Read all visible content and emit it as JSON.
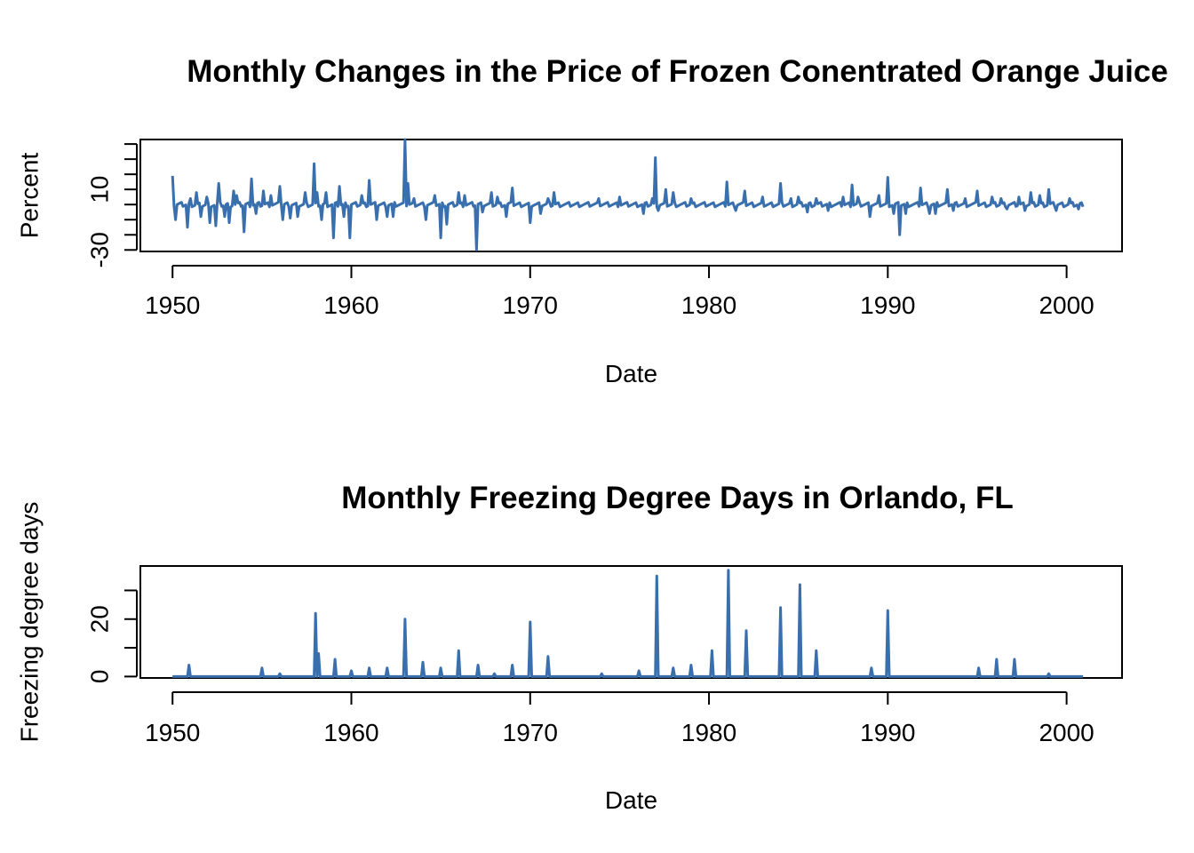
{
  "colors": {
    "series": "#3a6fae",
    "axis": "#000000",
    "background": "#ffffff"
  },
  "chart_data": [
    {
      "type": "line",
      "title": "Monthly Changes in the Price of Frozen Conentrated Orange Juice",
      "xlabel": "Date",
      "ylabel": "Percent",
      "xlim": [
        1948.2,
        2003.1
      ],
      "ylim": [
        -31,
        43
      ],
      "x_ticks": [
        1950,
        1960,
        1970,
        1980,
        1990,
        2000
      ],
      "x_tick_labels": [
        "1950",
        "1960",
        "1970",
        "1980",
        "1990",
        "2000"
      ],
      "y_ticks": [
        -30,
        -20,
        -10,
        0,
        10,
        20,
        30,
        40
      ],
      "y_tick_labels": [
        "-30",
        "",
        "",
        "",
        "10",
        "",
        "",
        ""
      ],
      "grid": false,
      "series": [
        {
          "x_start": 1950.0,
          "x_end": 2000.9,
          "values_note_free": true,
          "baseline": 0,
          "spikes": [
            [
              1950.0,
              19
            ],
            [
              1950.2,
              -10
            ],
            [
              1950.8,
              -15
            ],
            [
              1951.0,
              4
            ],
            [
              1951.3,
              8
            ],
            [
              1951.6,
              -8
            ],
            [
              1951.9,
              5
            ],
            [
              1952.1,
              -12
            ],
            [
              1952.4,
              -14
            ],
            [
              1952.6,
              14
            ],
            [
              1952.9,
              -8
            ],
            [
              1953.2,
              -12
            ],
            [
              1953.4,
              9
            ],
            [
              1953.6,
              6
            ],
            [
              1954.0,
              -18
            ],
            [
              1954.4,
              17
            ],
            [
              1954.7,
              -6
            ],
            [
              1955.1,
              9
            ],
            [
              1955.5,
              6
            ],
            [
              1956.0,
              12
            ],
            [
              1956.2,
              -10
            ],
            [
              1956.6,
              -9
            ],
            [
              1957.0,
              -8
            ],
            [
              1957.4,
              8
            ],
            [
              1957.9,
              27
            ],
            [
              1958.1,
              8
            ],
            [
              1958.3,
              -10
            ],
            [
              1958.6,
              8
            ],
            [
              1959.0,
              -22
            ],
            [
              1959.3,
              12
            ],
            [
              1959.6,
              -8
            ],
            [
              1959.9,
              -22
            ],
            [
              1960.6,
              6
            ],
            [
              1961.0,
              16
            ],
            [
              1961.4,
              -10
            ],
            [
              1962.0,
              -8
            ],
            [
              1962.3,
              -8
            ],
            [
              1963.0,
              43
            ],
            [
              1963.2,
              14
            ],
            [
              1963.5,
              4
            ],
            [
              1964.2,
              -10
            ],
            [
              1964.7,
              6
            ],
            [
              1965.0,
              -22
            ],
            [
              1965.3,
              -13
            ],
            [
              1966.0,
              8
            ],
            [
              1966.3,
              6
            ],
            [
              1967.0,
              -30
            ],
            [
              1967.3,
              -5
            ],
            [
              1967.8,
              8
            ],
            [
              1968.2,
              5
            ],
            [
              1968.7,
              -8
            ],
            [
              1969.0,
              11
            ],
            [
              1970.0,
              -12
            ],
            [
              1970.6,
              -6
            ],
            [
              1971.0,
              4
            ],
            [
              1971.3,
              8
            ],
            [
              1973.8,
              4
            ],
            [
              1975.0,
              5
            ],
            [
              1976.3,
              -6
            ],
            [
              1976.8,
              4
            ],
            [
              1977.0,
              31
            ],
            [
              1977.2,
              -4
            ],
            [
              1977.6,
              10
            ],
            [
              1978.0,
              8
            ],
            [
              1979.0,
              4
            ],
            [
              1981.0,
              15
            ],
            [
              1981.5,
              -4
            ],
            [
              1982.0,
              9
            ],
            [
              1983.0,
              5
            ],
            [
              1984.0,
              14
            ],
            [
              1984.6,
              4
            ],
            [
              1985.0,
              5
            ],
            [
              1985.5,
              -5
            ],
            [
              1986.0,
              4
            ],
            [
              1986.7,
              -4
            ],
            [
              1987.5,
              5
            ],
            [
              1988.0,
              13
            ],
            [
              1988.3,
              5
            ],
            [
              1989.0,
              -8
            ],
            [
              1989.5,
              6
            ],
            [
              1990.0,
              18
            ],
            [
              1990.3,
              -6
            ],
            [
              1990.7,
              -20
            ],
            [
              1991.0,
              -6
            ],
            [
              1991.8,
              11
            ],
            [
              1992.3,
              -6
            ],
            [
              1992.7,
              -6
            ],
            [
              1993.3,
              10
            ],
            [
              1993.7,
              -4
            ],
            [
              1994.3,
              4
            ],
            [
              1995.0,
              9
            ],
            [
              1995.8,
              5
            ],
            [
              1996.3,
              4
            ],
            [
              1996.7,
              -3
            ],
            [
              1997.3,
              5
            ],
            [
              1997.7,
              -4
            ],
            [
              1998.0,
              8
            ],
            [
              1998.5,
              6
            ],
            [
              1999.0,
              10
            ],
            [
              1999.4,
              -4
            ],
            [
              2000.2,
              4
            ],
            [
              2000.7,
              -3
            ]
          ]
        }
      ]
    },
    {
      "type": "line",
      "title": "Monthly Freezing Degree Days in Orlando, FL",
      "xlabel": "Date",
      "ylabel": "Freezing degree days",
      "xlim": [
        1948.2,
        2003.1
      ],
      "ylim": [
        -0.5,
        38.5
      ],
      "x_ticks": [
        1950,
        1960,
        1970,
        1980,
        1990,
        2000
      ],
      "x_tick_labels": [
        "1950",
        "1960",
        "1970",
        "1980",
        "1990",
        "2000"
      ],
      "y_ticks": [
        0,
        10,
        20,
        30
      ],
      "y_tick_labels": [
        "0",
        "",
        "20",
        ""
      ],
      "grid": false,
      "series": [
        {
          "x_start": 1950.0,
          "x_end": 2000.9,
          "baseline": 0,
          "spikes": [
            [
              1950.9,
              4
            ],
            [
              1955.0,
              3
            ],
            [
              1956.0,
              1
            ],
            [
              1958.0,
              22
            ],
            [
              1958.2,
              8
            ],
            [
              1959.1,
              6
            ],
            [
              1960.0,
              2
            ],
            [
              1961.0,
              3
            ],
            [
              1962.0,
              3
            ],
            [
              1963.0,
              20
            ],
            [
              1964.0,
              5
            ],
            [
              1965.0,
              3
            ],
            [
              1966.0,
              9
            ],
            [
              1967.1,
              4
            ],
            [
              1968.0,
              1
            ],
            [
              1969.0,
              4
            ],
            [
              1970.0,
              19
            ],
            [
              1971.0,
              7
            ],
            [
              1974.0,
              1
            ],
            [
              1976.1,
              2
            ],
            [
              1977.1,
              35
            ],
            [
              1978.0,
              3
            ],
            [
              1979.0,
              4
            ],
            [
              1980.2,
              9
            ],
            [
              1981.1,
              37
            ],
            [
              1982.1,
              16
            ],
            [
              1984.0,
              24
            ],
            [
              1985.1,
              32
            ],
            [
              1986.0,
              9
            ],
            [
              1989.1,
              3
            ],
            [
              1990.0,
              23
            ],
            [
              1995.1,
              3
            ],
            [
              1996.1,
              6
            ],
            [
              1997.1,
              6
            ],
            [
              1999.0,
              1
            ]
          ]
        }
      ]
    }
  ]
}
